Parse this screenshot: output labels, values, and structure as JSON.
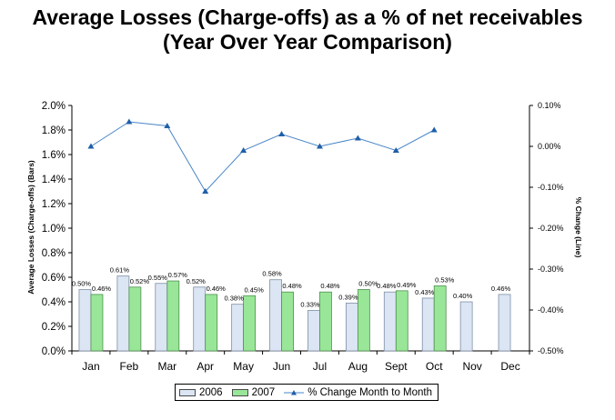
{
  "title": {
    "line1": "Average Losses (Charge-offs) as a % of net receivables",
    "line2": "(Year Over Year Comparison)"
  },
  "chart_data": {
    "type": "bar",
    "categories": [
      "Jan",
      "Feb",
      "Mar",
      "Apr",
      "May",
      "Jun",
      "Jul",
      "Aug",
      "Sept",
      "Oct",
      "Nov",
      "Dec"
    ],
    "series": [
      {
        "name": "2006",
        "kind": "bar",
        "axis": "left",
        "color": "#dbe5f3",
        "values": [
          0.5,
          0.61,
          0.55,
          0.52,
          0.38,
          0.58,
          0.33,
          0.39,
          0.48,
          0.43,
          0.4,
          0.46
        ],
        "labels": [
          "0.50%",
          "0.61%",
          "0.55%",
          "0.52%",
          "0.38%",
          "0.58%",
          "0.33%",
          "0.39%",
          "0.48%",
          "0.43%",
          "0.40%",
          "0.46%"
        ]
      },
      {
        "name": "2007",
        "kind": "bar",
        "axis": "left",
        "color": "#99e699",
        "values": [
          0.46,
          0.52,
          0.57,
          0.46,
          0.45,
          0.48,
          0.48,
          0.5,
          0.49,
          0.53,
          null,
          null
        ],
        "labels": [
          "0.46%",
          "0.52%",
          "0.57%",
          "0.46%",
          "0.45%",
          "0.48%",
          "0.48%",
          "0.50%",
          "0.49%",
          "0.53%",
          "",
          ""
        ]
      },
      {
        "name": "% Change Month to Month",
        "kind": "line",
        "axis": "right",
        "color": "#4a86c8",
        "values": [
          0.0,
          0.06,
          0.05,
          -0.11,
          -0.01,
          0.03,
          0.0,
          0.02,
          -0.01,
          0.04,
          null,
          null
        ]
      }
    ],
    "ylabel": "Average Losses (Charge-offs) (Bars)",
    "ylabel_right": "% Change (Line)",
    "ylim": [
      0,
      2.0
    ],
    "ylim_right": [
      -0.5,
      0.1
    ],
    "y_ticks": [
      "0.0%",
      "0.2%",
      "0.4%",
      "0.6%",
      "0.8%",
      "1.0%",
      "1.2%",
      "1.4%",
      "1.6%",
      "1.8%",
      "2.0%"
    ],
    "y_ticks_right": [
      "0.10%",
      "0.00%",
      "-0.10%",
      "-0.20%",
      "-0.30%",
      "-0.40%",
      "-0.50%"
    ],
    "grid": false,
    "legend_position": "bottom"
  }
}
